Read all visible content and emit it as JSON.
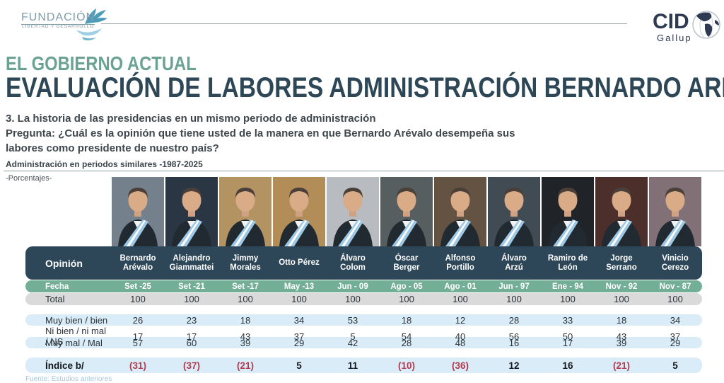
{
  "branding": {
    "fundacion": {
      "line1": "FUNDACIÓN",
      "line2": "LIBERTAD Y DESARROLLO"
    },
    "cid": {
      "line1": "CID",
      "line2": "Gallup"
    }
  },
  "header": {
    "kicker": "EL GOBIERNO ACTUAL",
    "title": "EVALUACIÓN DE LABORES ADMINISTRACIÓN BERNARDO ARÉVALO",
    "question_lines": [
      "3. La historia de las presidencias en un mismo periodo de administración",
      "Pregunta: ¿Cuál es la opinión que tiene usted de la manera en que Bernardo Arévalo desempeña sus",
      "labores como presidente de nuestro país?"
    ],
    "subtitle": "Administración en periodos similares -1987-2025",
    "unit_label": "-Porcentajes-"
  },
  "table": {
    "opinion_header": "Opinión",
    "fecha_label": "Fecha",
    "columns": [
      {
        "name_lines": [
          "Bernardo",
          "Arévalo"
        ],
        "fecha": "Set -25",
        "photo_bg": "#7e8d99"
      },
      {
        "name_lines": [
          "Alejandro",
          "Giammattei"
        ],
        "fecha": "Set -21",
        "photo_bg": "#2e3b4a"
      },
      {
        "name_lines": [
          "Jimmy",
          "Morales"
        ],
        "fecha": "Set -17",
        "photo_bg": "#c3a06a"
      },
      {
        "name_lines": [
          "Otto Pérez"
        ],
        "fecha": "May -13",
        "photo_bg": "#c29a5f"
      },
      {
        "name_lines": [
          "Álvaro",
          "Colom"
        ],
        "fecha": "Jun - 09",
        "photo_bg": "#c8cdd1"
      },
      {
        "name_lines": [
          "Óscar",
          "Berger"
        ],
        "fecha": "Ago - 05",
        "photo_bg": "#5e6669"
      },
      {
        "name_lines": [
          "Alfonso",
          "Portillo"
        ],
        "fecha": "Ago - 01",
        "photo_bg": "#6d5948"
      },
      {
        "name_lines": [
          "Álvaro",
          "Arzú"
        ],
        "fecha": "Jun - 97",
        "photo_bg": "#46525c"
      },
      {
        "name_lines": [
          "Ramiro de",
          "León"
        ],
        "fecha": "Ene - 94",
        "photo_bg": "#23272c"
      },
      {
        "name_lines": [
          "Jorge",
          "Serrano"
        ],
        "fecha": "Nov - 92",
        "photo_bg": "#53332e"
      },
      {
        "name_lines": [
          "Vinicio",
          "Cerezo"
        ],
        "fecha": "Nov - 87",
        "photo_bg": "#8d7a80"
      }
    ],
    "rows": [
      {
        "label": "Total",
        "style": "total",
        "values": [
          "100",
          "100",
          "100",
          "100",
          "100",
          "100",
          "100",
          "100",
          "100",
          "100",
          "100"
        ]
      },
      {
        "label": "Muy bien / bien",
        "style": "blue",
        "values": [
          "26",
          "23",
          "18",
          "34",
          "53",
          "18",
          "12",
          "28",
          "33",
          "18",
          "34"
        ]
      },
      {
        "label": "Ni bien / ni mal / NS",
        "style": "white",
        "values": [
          "17",
          "17",
          "43",
          "37",
          "5",
          "54",
          "40",
          "56",
          "50",
          "43",
          "37"
        ]
      },
      {
        "label": "Muy mal / Mal",
        "style": "blue",
        "values": [
          "57",
          "60",
          "39",
          "29",
          "42",
          "28",
          "48",
          "16",
          "17",
          "39",
          "29"
        ]
      },
      {
        "label": "Índice b/",
        "style": "indice",
        "values": [
          "(31)",
          "(37)",
          "(21)",
          "5",
          "11",
          "(10)",
          "(36)",
          "12",
          "16",
          "(21)",
          "5"
        ]
      }
    ]
  },
  "chart_data": {
    "type": "table",
    "title": "EVALUACIÓN DE LABORES ADMINISTRACIÓN BERNARDO ARÉVALO",
    "subtitle": "Administración en periodos similares -1987-2025",
    "unit": "Porcentajes",
    "columns": [
      "Bernardo Arévalo",
      "Alejandro Giammattei",
      "Jimmy Morales",
      "Otto Pérez",
      "Álvaro Colom",
      "Óscar Berger",
      "Alfonso Portillo",
      "Álvaro Arzú",
      "Ramiro de León",
      "Jorge Serrano",
      "Vinicio Cerezo"
    ],
    "fecha": [
      "Set -25",
      "Set -21",
      "Set -17",
      "May -13",
      "Jun - 09",
      "Ago - 05",
      "Ago - 01",
      "Jun - 97",
      "Ene - 94",
      "Nov - 92",
      "Nov - 87"
    ],
    "series": [
      {
        "name": "Total",
        "values": [
          100,
          100,
          100,
          100,
          100,
          100,
          100,
          100,
          100,
          100,
          100
        ]
      },
      {
        "name": "Muy bien / bien",
        "values": [
          26,
          23,
          18,
          34,
          53,
          18,
          12,
          28,
          33,
          18,
          34
        ]
      },
      {
        "name": "Ni bien / ni mal / NS",
        "values": [
          17,
          17,
          43,
          37,
          5,
          54,
          40,
          56,
          50,
          43,
          37
        ]
      },
      {
        "name": "Muy mal / Mal",
        "values": [
          57,
          60,
          39,
          29,
          42,
          28,
          48,
          16,
          17,
          39,
          29
        ]
      },
      {
        "name": "Índice b/",
        "values": [
          -31,
          -37,
          -21,
          5,
          11,
          -10,
          -36,
          12,
          16,
          -21,
          5
        ]
      }
    ]
  },
  "colors": {
    "navy_header": "#2d4759",
    "green_row": "#73af96",
    "gray_row": "#dadada",
    "blue_row": "#d9ecf7",
    "negative_red": "#b23c50",
    "kicker_green": "#6ba392",
    "title_navy": "#2d4757"
  },
  "footer": {
    "source": "Fuente: Estudios anteriores"
  }
}
